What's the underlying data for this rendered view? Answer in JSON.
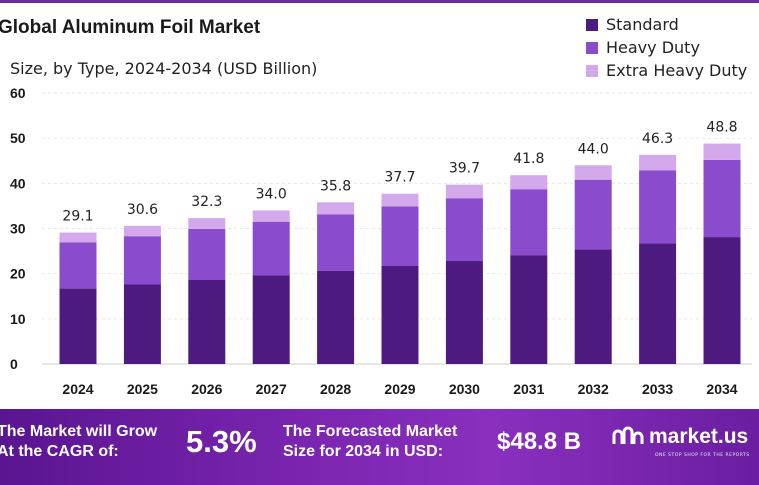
{
  "chart_data": {
    "type": "bar",
    "stacked": true,
    "title": "Global Aluminum Foil Market",
    "subtitle": "Size, by Type, 2024-2034 (USD Billion)",
    "categories": [
      "2024",
      "2025",
      "2026",
      "2027",
      "2028",
      "2029",
      "2030",
      "2031",
      "2032",
      "2033",
      "2034"
    ],
    "series": [
      {
        "name": "Standard",
        "color": "#4d1a80",
        "values": [
          16.7,
          17.6,
          18.6,
          19.6,
          20.6,
          21.7,
          22.8,
          24.1,
          25.4,
          26.7,
          28.1
        ]
      },
      {
        "name": "Heavy Duty",
        "color": "#8a4bcc",
        "values": [
          10.2,
          10.7,
          11.3,
          11.9,
          12.5,
          13.2,
          13.9,
          14.6,
          15.4,
          16.2,
          17.1
        ]
      },
      {
        "name": "Extra Heavy Duty",
        "color": "#d3a9ec",
        "values": [
          2.2,
          2.3,
          2.4,
          2.5,
          2.7,
          2.8,
          3.0,
          3.1,
          3.2,
          3.4,
          3.6
        ]
      }
    ],
    "totals": [
      "29.1",
      "30.6",
      "32.3",
      "34.0",
      "35.8",
      "37.7",
      "39.7",
      "41.8",
      "44.0",
      "46.3",
      "48.8"
    ],
    "yticks": [
      "0",
      "10",
      "20",
      "30",
      "40",
      "50",
      "60"
    ],
    "ylim": [
      0,
      60
    ]
  },
  "banner": {
    "cagr_line1": "The Market will Grow",
    "cagr_line2": "At the CAGR of:",
    "cagr_value": "5.3%",
    "forecast_line1": "The Forecasted Market",
    "forecast_line2": "Size for 2034 in USD:",
    "forecast_value": "$48.8 B",
    "logo_text": "market.us",
    "logo_tagline": "ONE STOP SHOP FOR THE REPORTS"
  }
}
